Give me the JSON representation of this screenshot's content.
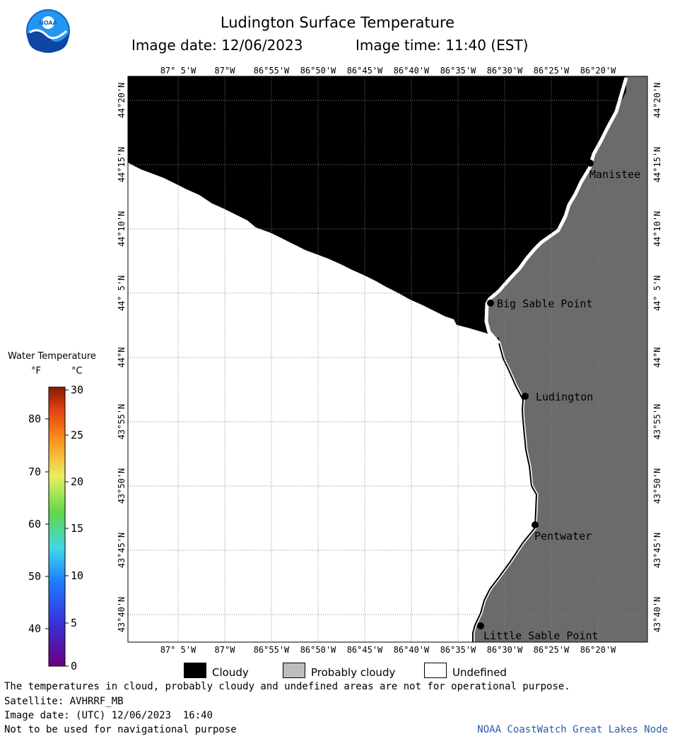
{
  "header": {
    "title": "Ludington Surface Temperature",
    "date_label": "Image date: 12/06/2023",
    "time_label": "Image time: 11:40 (EST)"
  },
  "logo": {
    "text": "NOAA"
  },
  "longitudes": [
    "87° 5'W",
    "87°W",
    "86°55'W",
    "86°50'W",
    "86°45'W",
    "86°40'W",
    "86°35'W",
    "86°30'W",
    "86°25'W",
    "86°20'W"
  ],
  "latitudes": [
    "44°20'N",
    "44°15'N",
    "44°10'N",
    "44° 5'N",
    "44°N",
    "43°55'N",
    "43°50'N",
    "43°45'N",
    "43°40'N"
  ],
  "places": [
    {
      "name": "Manistee"
    },
    {
      "name": "Big Sable Point"
    },
    {
      "name": "Ludington"
    },
    {
      "name": "Pentwater"
    },
    {
      "name": "Little Sable Point"
    }
  ],
  "colors": {
    "cloudy": "#000000",
    "probably_cloudy": "#6b6b6b",
    "undefined": "#ffffff",
    "credit": "#2a5db0"
  },
  "scale": {
    "title": "Water Temperature",
    "unit_f": "°F",
    "unit_c": "°C",
    "f_labels": [
      "80",
      "70",
      "60",
      "50",
      "40"
    ],
    "c_labels": [
      "30",
      "25",
      "20",
      "15",
      "10",
      "5",
      "0"
    ]
  },
  "legend": {
    "cloudy": "Cloudy",
    "probably_cloudy": "Probably cloudy",
    "undefined": "Undefined"
  },
  "footer": {
    "disclaimer": "The temperatures in cloud, probably cloudy and undefined areas are not for operational purpose.",
    "satellite": "Satellite: AVHRRF_MB",
    "utc_date": "Image date: (UTC) 12/06/2023  16:40",
    "nav_warning": "Not to be used for navigational purpose",
    "credit": "NOAA CoastWatch Great Lakes Node"
  }
}
